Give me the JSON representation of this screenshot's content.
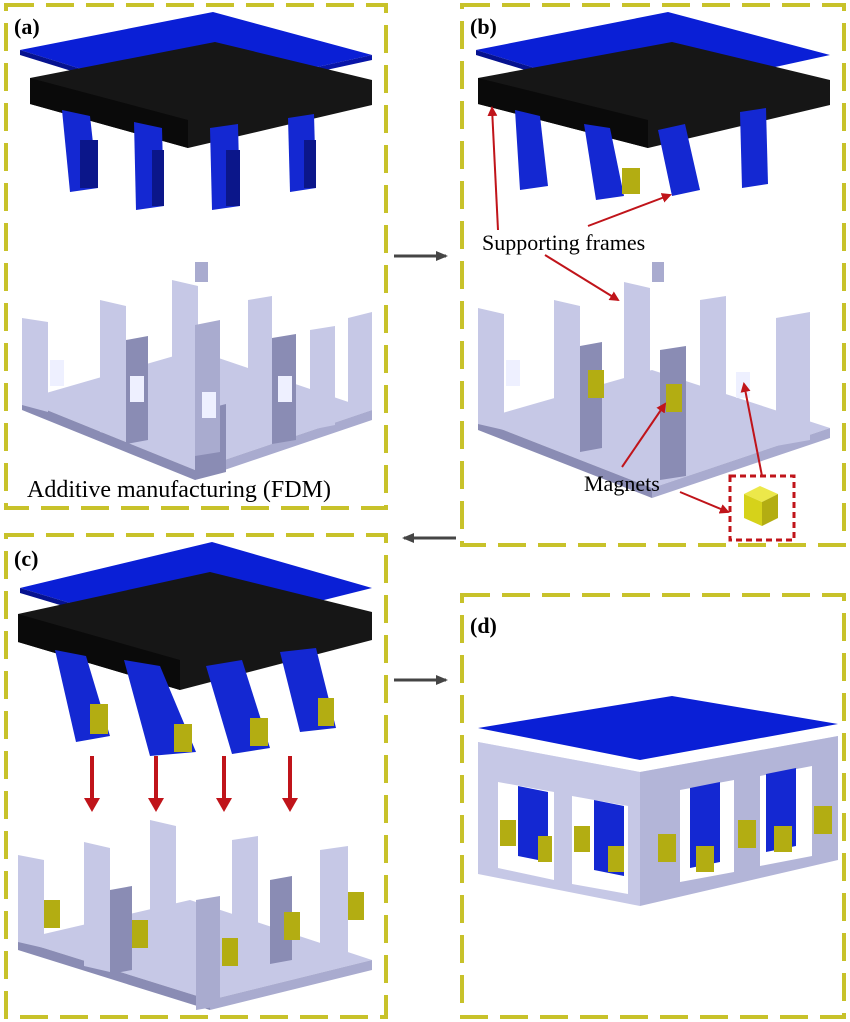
{
  "panels": {
    "a": {
      "label": "(a)",
      "caption": "Additive manufacturing (FDM)"
    },
    "b": {
      "label": "(b)",
      "annot_frames": "Supporting frames",
      "annot_magnets": "Magnets"
    },
    "c": {
      "label": "(c)"
    },
    "d": {
      "label": "(d)"
    }
  },
  "colors": {
    "dash_border": "#c8c22a",
    "top_plate": "#0a1fd6",
    "top_plate_edge": "#06128f",
    "frame_black": "#161616",
    "pillar_blue": "#1428d2",
    "pillar_blue_dark": "#0b168a",
    "base_light": "#c6c8e6",
    "base_side": "#a9abcf",
    "base_dark": "#8a8cb4",
    "magnet_yellow": "#b3ad12",
    "arrow_red": "#c0141a",
    "arrow_gray": "#454545",
    "magnet_box": "#c0141a"
  }
}
